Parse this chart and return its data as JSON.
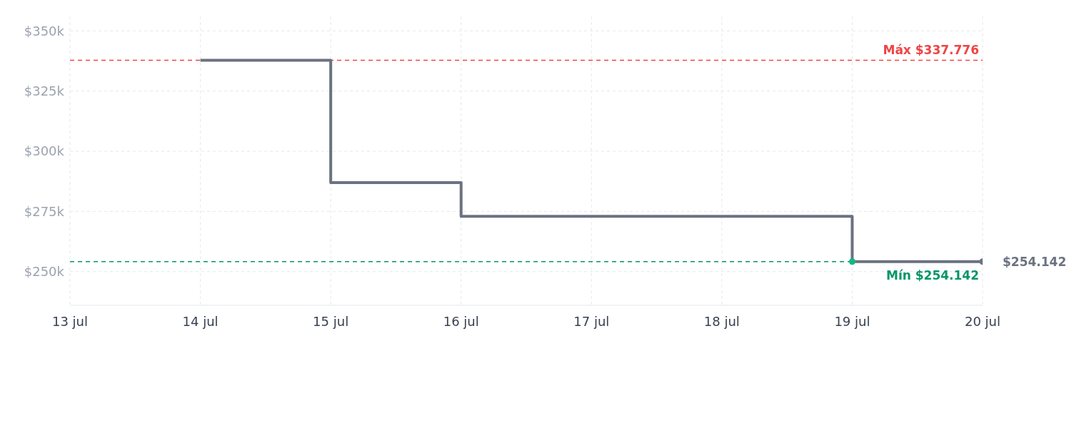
{
  "chart_data": {
    "type": "step",
    "xlim": [
      "--07-13",
      "--07-20"
    ],
    "xticks": [
      {
        "value": "--07-13",
        "label": "13 jul"
      },
      {
        "value": "--07-14",
        "label": "14 jul"
      },
      {
        "value": "--07-15",
        "label": "15 jul"
      },
      {
        "value": "--07-16",
        "label": "16 jul"
      },
      {
        "value": "--07-17",
        "label": "17 jul"
      },
      {
        "value": "--07-18",
        "label": "18 jul"
      },
      {
        "value": "--07-19",
        "label": "19 jul"
      },
      {
        "value": "--07-20",
        "label": "20 jul"
      }
    ],
    "ylim": [
      236000,
      356000
    ],
    "yticks": [
      {
        "value": 250000,
        "label": "$250k"
      },
      {
        "value": 275000,
        "label": "$275k"
      },
      {
        "value": 300000,
        "label": "$300k"
      },
      {
        "value": 325000,
        "label": "$325k"
      },
      {
        "value": 350000,
        "label": "$350k"
      }
    ],
    "series": [
      {
        "color": "#6b7280",
        "x": [
          "--07-14",
          "--07-15",
          "--07-16",
          "--07-19",
          "--07-20"
        ],
        "values": [
          337776,
          287000,
          273000,
          254142,
          254142
        ]
      },
      {
        "type": "scatter",
        "color": "#10b981",
        "x": [
          "--07-19"
        ],
        "values": [
          254142
        ]
      },
      {
        "type": "scatter",
        "color": "#6b7280",
        "x": [
          "--07-20"
        ],
        "values": [
          254142
        ]
      }
    ],
    "ref_lines": [
      {
        "axis": "y",
        "value": 337776,
        "label": "Máx $337.776",
        "color": "#ef4444",
        "line_style": "dashed"
      },
      {
        "axis": "y",
        "value": 254142,
        "label": "Mín $254.142",
        "color": "#059669",
        "line_style": "dashed"
      }
    ],
    "annotations": [
      {
        "text": "$254.142",
        "x": "--07-20",
        "y": 254142
      }
    ],
    "grid": true,
    "line_style": "solid",
    "legend": false
  }
}
